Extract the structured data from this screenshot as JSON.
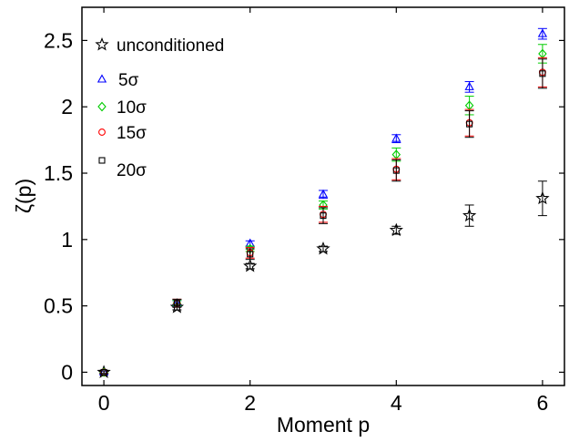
{
  "chart_data": {
    "type": "scatter",
    "xlabel": "Moment p",
    "ylabel": "ζ(p)",
    "xlim": [
      -0.3,
      6.3
    ],
    "ylim": [
      -0.1,
      2.75
    ],
    "xticks": [
      "0",
      "2",
      "4",
      "6"
    ],
    "yticks": [
      "0",
      "0.5",
      "1",
      "1.5",
      "2",
      "2.5"
    ],
    "legend_position": "top-left",
    "series": [
      {
        "name": "unconditioned",
        "marker": "star",
        "color": "#000000",
        "points": [
          {
            "x": 0,
            "y": 0.0,
            "err": 0.01
          },
          {
            "x": 1,
            "y": 0.49,
            "err": 0.02
          },
          {
            "x": 2,
            "y": 0.8,
            "err": 0.02
          },
          {
            "x": 3,
            "y": 0.93,
            "err": 0.02
          },
          {
            "x": 4,
            "y": 1.07,
            "err": 0.03
          },
          {
            "x": 5,
            "y": 1.18,
            "err": 0.08
          },
          {
            "x": 6,
            "y": 1.31,
            "err": 0.13
          }
        ]
      },
      {
        "name": "5σ",
        "marker": "triangle",
        "color": "#0000ff",
        "points": [
          {
            "x": 0,
            "y": 0.0,
            "err": 0.01
          },
          {
            "x": 1,
            "y": 0.52,
            "err": 0.02
          },
          {
            "x": 2,
            "y": 0.97,
            "err": 0.02
          },
          {
            "x": 3,
            "y": 1.34,
            "err": 0.03
          },
          {
            "x": 4,
            "y": 1.76,
            "err": 0.03
          },
          {
            "x": 5,
            "y": 2.15,
            "err": 0.04
          },
          {
            "x": 6,
            "y": 2.55,
            "err": 0.04
          }
        ]
      },
      {
        "name": "10σ",
        "marker": "diamond",
        "color": "#00cc00",
        "points": [
          {
            "x": 0,
            "y": 0.0,
            "err": 0.01
          },
          {
            "x": 1,
            "y": 0.52,
            "err": 0.02
          },
          {
            "x": 2,
            "y": 0.93,
            "err": 0.02
          },
          {
            "x": 3,
            "y": 1.26,
            "err": 0.03
          },
          {
            "x": 4,
            "y": 1.64,
            "err": 0.05
          },
          {
            "x": 5,
            "y": 2.01,
            "err": 0.07
          },
          {
            "x": 6,
            "y": 2.4,
            "err": 0.07
          }
        ]
      },
      {
        "name": "15σ",
        "marker": "circle",
        "color": "#ff0000",
        "points": [
          {
            "x": 0,
            "y": 0.0,
            "err": 0.01
          },
          {
            "x": 1,
            "y": 0.52,
            "err": 0.03
          },
          {
            "x": 2,
            "y": 0.9,
            "err": 0.04
          },
          {
            "x": 3,
            "y": 1.19,
            "err": 0.06
          },
          {
            "x": 4,
            "y": 1.53,
            "err": 0.08
          },
          {
            "x": 5,
            "y": 1.88,
            "err": 0.1
          },
          {
            "x": 6,
            "y": 2.26,
            "err": 0.11
          }
        ]
      },
      {
        "name": "20σ",
        "marker": "square",
        "color": "#000000",
        "points": [
          {
            "x": 0,
            "y": 0.0,
            "err": 0.01
          },
          {
            "x": 1,
            "y": 0.52,
            "err": 0.03
          },
          {
            "x": 2,
            "y": 0.89,
            "err": 0.04
          },
          {
            "x": 3,
            "y": 1.18,
            "err": 0.06
          },
          {
            "x": 4,
            "y": 1.52,
            "err": 0.08
          },
          {
            "x": 5,
            "y": 1.87,
            "err": 0.1
          },
          {
            "x": 6,
            "y": 2.25,
            "err": 0.11
          }
        ]
      }
    ]
  }
}
